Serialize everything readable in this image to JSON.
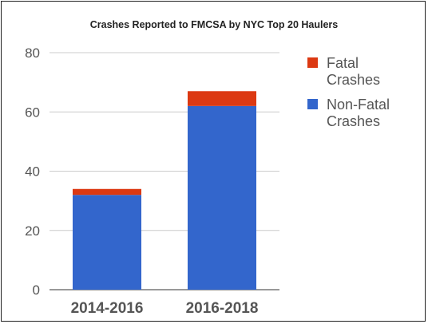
{
  "chart_data": {
    "type": "bar",
    "stacked": true,
    "title": "Crashes Reported to FMCSA by NYC Top 20 Haulers",
    "xlabel": "",
    "ylabel": "",
    "categories": [
      "2014-2016",
      "2016-2018"
    ],
    "series": [
      {
        "name": "Non-Fatal Crashes",
        "legend_lines": [
          "Non-Fatal",
          "Crashes"
        ],
        "values": [
          32,
          62
        ],
        "color": "#3366cc"
      },
      {
        "name": "Fatal Crashes",
        "legend_lines": [
          "Fatal",
          "Crashes"
        ],
        "values": [
          2,
          5
        ],
        "color": "#dc3912"
      }
    ],
    "ylim": [
      0,
      80
    ],
    "yticks": [
      0,
      20,
      40,
      60,
      80
    ],
    "grid": true,
    "legend_position": "right"
  }
}
